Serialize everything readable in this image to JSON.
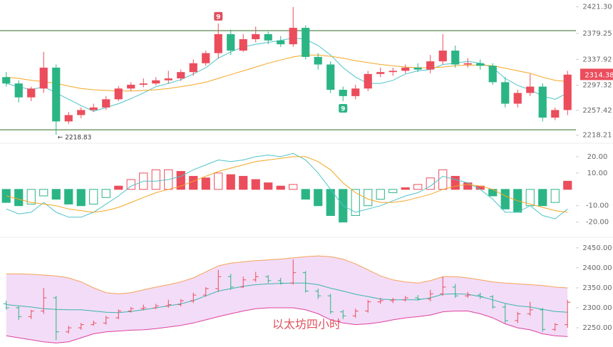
{
  "chart_data": [
    {
      "type": "candlestick",
      "categories": [
        null,
        null,
        null,
        null,
        null,
        null,
        null,
        null,
        null,
        null,
        null,
        null,
        null,
        null,
        null,
        null,
        null,
        null,
        null,
        null,
        null,
        null,
        null,
        null,
        null,
        null,
        null,
        null,
        null,
        null,
        null,
        null,
        null,
        null,
        null,
        null,
        null,
        null,
        null,
        null,
        null,
        null,
        null,
        null,
        null,
        null
      ],
      "open": [
        2310,
        2300,
        2278,
        2292,
        2325,
        2240,
        2250,
        2258,
        2262,
        2275,
        2292,
        2298,
        2300,
        2305,
        2308,
        2318,
        2332,
        2348,
        2378,
        2352,
        2370,
        2378,
        2368,
        2362,
        2388,
        2342,
        2330,
        2290,
        2280,
        2292,
        2315,
        2318,
        2320,
        2325,
        2322,
        2335,
        2352,
        2330,
        2332,
        2328,
        2302,
        2268,
        2285,
        2295,
        2246,
        2258
      ],
      "high": [
        2318,
        2305,
        2295,
        2350,
        2330,
        2255,
        2262,
        2268,
        2280,
        2296,
        2302,
        2308,
        2310,
        2320,
        2322,
        2338,
        2352,
        2395,
        2385,
        2378,
        2390,
        2382,
        2375,
        2421,
        2392,
        2348,
        2335,
        2295,
        2298,
        2320,
        2325,
        2325,
        2330,
        2332,
        2345,
        2378,
        2360,
        2340,
        2338,
        2332,
        2310,
        2290,
        2315,
        2300,
        2262,
        2320
      ],
      "low": [
        2295,
        2270,
        2272,
        2285,
        2219,
        2236,
        2245,
        2255,
        2258,
        2272,
        2288,
        2294,
        2297,
        2300,
        2304,
        2312,
        2328,
        2340,
        2345,
        2350,
        2365,
        2362,
        2358,
        2358,
        2338,
        2322,
        2285,
        2272,
        2275,
        2288,
        2310,
        2312,
        2316,
        2318,
        2316,
        2330,
        2325,
        2325,
        2322,
        2298,
        2262,
        2262,
        2280,
        2240,
        2242,
        2250
      ],
      "close": [
        2300,
        2278,
        2292,
        2325,
        2240,
        2250,
        2258,
        2262,
        2275,
        2292,
        2298,
        2300,
        2305,
        2308,
        2318,
        2332,
        2348,
        2378,
        2352,
        2370,
        2378,
        2368,
        2362,
        2388,
        2342,
        2330,
        2290,
        2280,
        2292,
        2315,
        2318,
        2320,
        2325,
        2322,
        2335,
        2352,
        2330,
        2332,
        2328,
        2302,
        2268,
        2285,
        2295,
        2246,
        2258,
        2314
      ],
      "up_color": "#eb4d5c",
      "down_color": "#2bb585",
      "series": [
        {
          "color": "#4fc3c9",
          "values": [
            2300,
            2295,
            2290,
            2295,
            2285,
            2275,
            2265,
            2256,
            2262,
            2268,
            2276,
            2285,
            2295,
            2300,
            2306,
            2315,
            2325,
            2340,
            2350,
            2358,
            2362,
            2365,
            2368,
            2372,
            2370,
            2360,
            2345,
            2325,
            2310,
            2300,
            2300,
            2305,
            2315,
            2320,
            2322,
            2330,
            2332,
            2335,
            2332,
            2325,
            2308,
            2297,
            2290,
            2280,
            2275,
            2285
          ]
        },
        {
          "color": "#f5a623",
          "values": [
            2310,
            2308,
            2305,
            2303,
            2300,
            2296,
            2292,
            2290,
            2289,
            2288,
            2288,
            2289,
            2290,
            2292,
            2295,
            2298,
            2302,
            2308,
            2314,
            2320,
            2326,
            2332,
            2337,
            2342,
            2345,
            2345,
            2343,
            2340,
            2336,
            2333,
            2330,
            2328,
            2326,
            2325,
            2325,
            2326,
            2328,
            2329,
            2329,
            2328,
            2324,
            2320,
            2316,
            2310,
            2305,
            2303
          ]
        }
      ],
      "hlines": [
        2383.5,
        2226.8
      ],
      "hline_color": "#2e6b1f",
      "ylim": [
        2210,
        2432
      ],
      "yticks": [
        {
          "value": 2421.3,
          "label": "2421.30"
        },
        {
          "value": 2379.25,
          "label": "2379.25"
        },
        {
          "value": 2337.92,
          "label": "2337.92"
        },
        {
          "value": 2297.32,
          "label": "2297.32"
        },
        {
          "value": 2257.42,
          "label": "2257.42"
        },
        {
          "value": 2218.21,
          "label": "2218.21"
        }
      ],
      "last_price": 2314.38,
      "low_label": {
        "value": 2218.83,
        "label": "← 2218.83"
      },
      "markers": [
        {
          "index": 17,
          "label": "9",
          "position": "above",
          "color": "#e0505e"
        },
        {
          "index": 27,
          "label": "9",
          "position": "below",
          "color": "#2bb585"
        }
      ]
    },
    {
      "type": "macd",
      "values": [
        -8,
        -10,
        -9,
        -4,
        -6,
        -9,
        -10,
        -9,
        -5,
        2,
        6,
        10,
        12,
        12,
        11,
        8,
        7,
        10,
        9,
        8,
        6,
        4,
        2,
        3,
        -6,
        -10,
        -16,
        -20,
        -16,
        -10,
        -6,
        -2,
        1,
        3,
        7,
        12,
        8,
        4,
        2,
        -4,
        -12,
        -14,
        -10,
        -10,
        -8,
        5
      ],
      "series": [
        {
          "color": "#4fc3c9",
          "values": [
            -12,
            -15,
            -14,
            -8,
            -14,
            -17,
            -17,
            -14,
            -9,
            -4,
            2,
            5,
            5,
            6,
            8,
            12,
            15,
            18,
            17,
            18,
            20,
            21,
            20,
            22,
            18,
            10,
            0,
            -10,
            -14,
            -12,
            -10,
            -7,
            -4,
            -2,
            2,
            8,
            6,
            4,
            0,
            -6,
            -14,
            -14,
            -10,
            -16,
            -18,
            -12
          ]
        },
        {
          "color": "#f5a623",
          "values": [
            -4,
            -6,
            -8,
            -9,
            -10,
            -12,
            -13,
            -14,
            -13,
            -11,
            -8,
            -5,
            -2,
            0,
            2,
            5,
            8,
            11,
            13,
            15,
            17,
            18,
            19,
            20,
            20,
            17,
            12,
            4,
            -2,
            -6,
            -8,
            -8,
            -7,
            -5,
            -3,
            0,
            2,
            3,
            2,
            0,
            -4,
            -7,
            -9,
            -11,
            -13,
            -14
          ]
        }
      ],
      "ylim": [
        -28,
        26.5
      ],
      "yticks": [
        {
          "value": 20,
          "label": "20.00"
        },
        {
          "value": 10,
          "label": "10.00"
        },
        {
          "value": -10,
          "label": "-10.00"
        },
        {
          "value": -20,
          "label": "-20.00"
        }
      ]
    },
    {
      "type": "ohlc",
      "series": [
        {
          "color": "#f5a35a",
          "values": [
            2385,
            2385,
            2384,
            2382,
            2380,
            2375,
            2365,
            2350,
            2338,
            2335,
            2338,
            2345,
            2352,
            2358,
            2365,
            2375,
            2390,
            2405,
            2412,
            2415,
            2418,
            2420,
            2422,
            2425,
            2428,
            2430,
            2428,
            2422,
            2410,
            2395,
            2380,
            2370,
            2365,
            2362,
            2368,
            2378,
            2378,
            2375,
            2370,
            2365,
            2362,
            2360,
            2358,
            2356,
            2352,
            2350
          ]
        },
        {
          "color": "#3bb5b0",
          "values": [
            2308,
            2305,
            2302,
            2298,
            2296,
            2295,
            2295,
            2292,
            2289,
            2288,
            2291,
            2295,
            2300,
            2305,
            2310,
            2318,
            2330,
            2342,
            2348,
            2354,
            2358,
            2360,
            2361,
            2362,
            2362,
            2358,
            2349,
            2342,
            2334,
            2328,
            2322,
            2320,
            2320,
            2320,
            2325,
            2334,
            2335,
            2334,
            2328,
            2320,
            2311,
            2305,
            2302,
            2296,
            2291,
            2289
          ]
        },
        {
          "color": "#e040a0",
          "values": [
            2230,
            2225,
            2220,
            2215,
            2212,
            2215,
            2225,
            2235,
            2240,
            2242,
            2244,
            2245,
            2248,
            2252,
            2256,
            2262,
            2270,
            2278,
            2285,
            2292,
            2298,
            2300,
            2300,
            2300,
            2295,
            2285,
            2270,
            2262,
            2258,
            2260,
            2264,
            2270,
            2275,
            2278,
            2282,
            2290,
            2292,
            2292,
            2285,
            2275,
            2260,
            2250,
            2245,
            2235,
            2230,
            2228
          ]
        }
      ],
      "band_fill": "#f3dcf7",
      "ylim": [
        2202,
        2473
      ],
      "yticks": [
        {
          "value": 2450,
          "label": "2450.00"
        },
        {
          "value": 2400,
          "label": "2400.00"
        },
        {
          "value": 2350,
          "label": "2350.00"
        },
        {
          "value": 2300,
          "label": "2300.00"
        },
        {
          "value": 2250,
          "label": "2250.00"
        }
      ],
      "watermark": "以太坊四小时"
    }
  ]
}
